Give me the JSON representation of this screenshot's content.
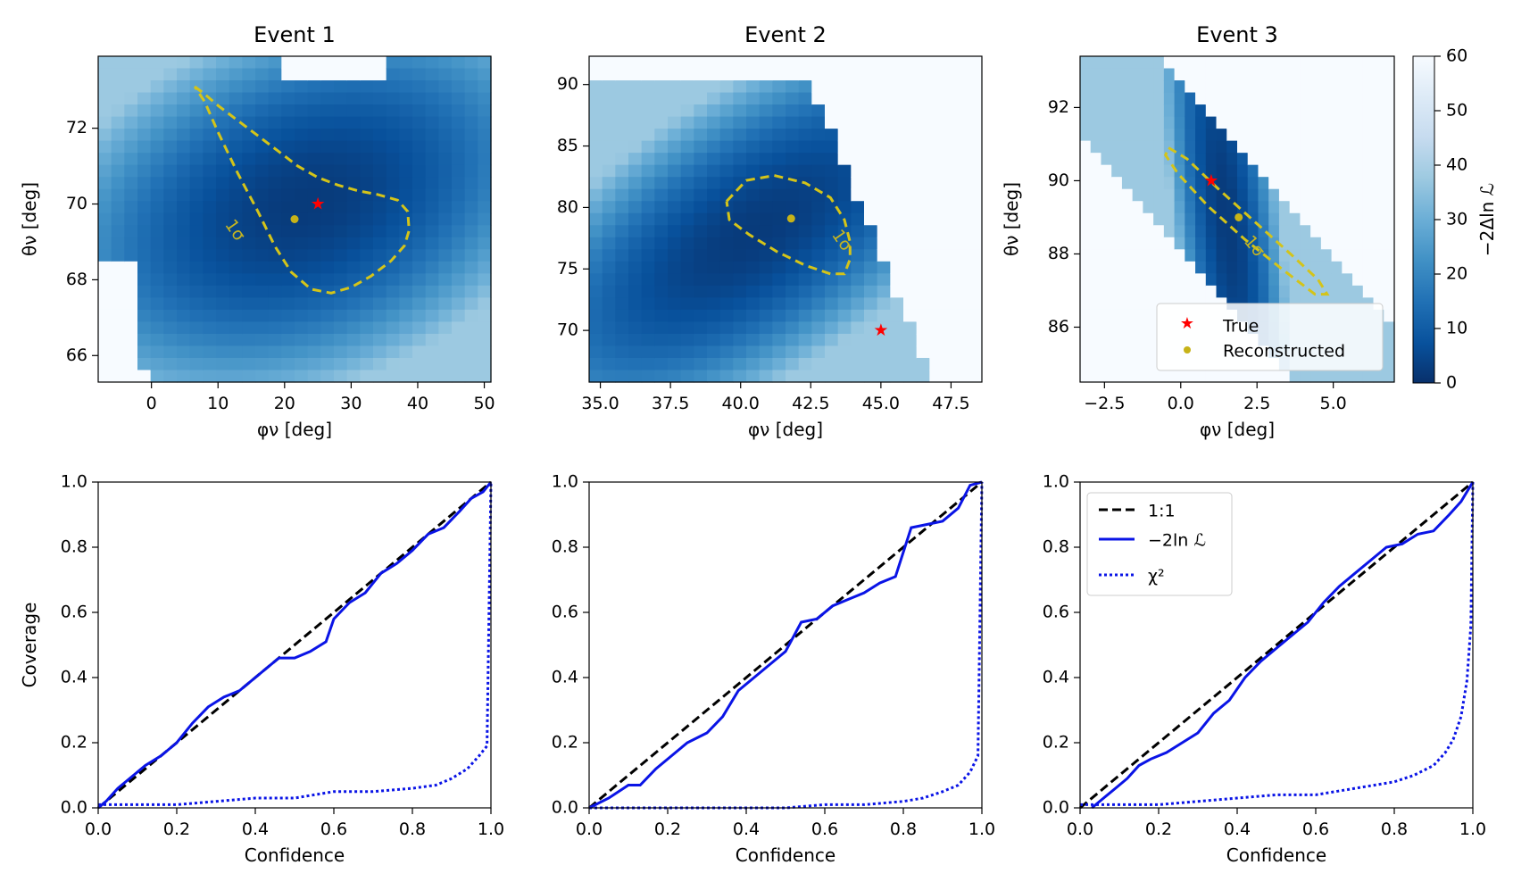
{
  "colors": {
    "true_marker": "#ff0000",
    "reco_marker": "#c7b318",
    "contour": "#d4c419",
    "identity_line": "#000000",
    "likelihood_line": "#0a14e6",
    "chi2_line": "#0a14e6",
    "colormap": [
      "#08306b",
      "#08519c",
      "#2171b5",
      "#4292c6",
      "#6baed6",
      "#9ecae1",
      "#c6dbef",
      "#deebf7",
      "#f7fbff"
    ]
  },
  "chart_data": [
    {
      "type": "heatmap",
      "title": "Event 1",
      "xlabel": "φν [deg]",
      "ylabel": "θν [deg]",
      "xlim": [
        -8,
        51
      ],
      "ylim": [
        65.3,
        73.9
      ],
      "xticks": [
        0,
        10,
        20,
        30,
        40,
        50
      ],
      "xtick_labels": [
        "0",
        "10",
        "20",
        "30",
        "40",
        "50"
      ],
      "yticks": [
        66,
        68,
        70,
        72
      ],
      "ytick_labels": [
        "66",
        "68",
        "70",
        "72"
      ],
      "true_point": [
        25,
        70
      ],
      "reconstructed_point": [
        21.5,
        69.6
      ],
      "contour_label": "1σ",
      "contour": [
        [
          6.5,
          73.1
        ],
        [
          8,
          72.9
        ],
        [
          10,
          72.6
        ],
        [
          13,
          72.2
        ],
        [
          16,
          71.8
        ],
        [
          19,
          71.4
        ],
        [
          22,
          71.0
        ],
        [
          25,
          70.7
        ],
        [
          28,
          70.5
        ],
        [
          31,
          70.35
        ],
        [
          34,
          70.25
        ],
        [
          37,
          70.1
        ],
        [
          38.5,
          69.8
        ],
        [
          38.7,
          69.3
        ],
        [
          38,
          68.9
        ],
        [
          36,
          68.5
        ],
        [
          33,
          68.1
        ],
        [
          30,
          67.8
        ],
        [
          27,
          67.65
        ],
        [
          24,
          67.75
        ],
        [
          21,
          68.2
        ],
        [
          18.5,
          68.9
        ],
        [
          16,
          69.8
        ],
        [
          13,
          70.8
        ],
        [
          10,
          71.9
        ],
        [
          8,
          72.7
        ],
        [
          6.5,
          73.1
        ]
      ]
    },
    {
      "type": "heatmap",
      "title": "Event 2",
      "xlabel": "φν [deg]",
      "ylabel": "",
      "xlim": [
        34.6,
        48.6
      ],
      "ylim": [
        65.8,
        92.3
      ],
      "xticks": [
        35,
        37.5,
        40,
        42.5,
        45,
        47.5
      ],
      "xtick_labels": [
        "35.0",
        "37.5",
        "40.0",
        "42.5",
        "45.0",
        "47.5"
      ],
      "yticks": [
        70,
        75,
        80,
        85,
        90
      ],
      "ytick_labels": [
        "70",
        "75",
        "80",
        "85",
        "90"
      ],
      "true_point": [
        45,
        70
      ],
      "reconstructed_point": [
        41.8,
        79.1
      ],
      "contour_label": "1σ",
      "contour": [
        [
          39.5,
          80.5
        ],
        [
          40.2,
          82.2
        ],
        [
          41.2,
          82.6
        ],
        [
          42.3,
          82.0
        ],
        [
          43.2,
          80.8
        ],
        [
          43.7,
          79.0
        ],
        [
          43.9,
          77.2
        ],
        [
          43.9,
          75.8
        ],
        [
          43.7,
          74.6
        ],
        [
          43.2,
          74.6
        ],
        [
          42.3,
          75.3
        ],
        [
          41.3,
          76.4
        ],
        [
          40.3,
          77.8
        ],
        [
          39.6,
          79.0
        ],
        [
          39.5,
          80.5
        ]
      ]
    },
    {
      "type": "heatmap",
      "title": "Event 3",
      "xlabel": "φν [deg]",
      "ylabel": "θν [deg]",
      "xlim": [
        -3.3,
        7.0
      ],
      "ylim": [
        84.5,
        93.4
      ],
      "xticks": [
        -2.5,
        0,
        2.5,
        5
      ],
      "xtick_labels": [
        "−2.5",
        "0.0",
        "2.5",
        "5.0"
      ],
      "yticks": [
        86,
        88,
        90,
        92
      ],
      "ytick_labels": [
        "86",
        "88",
        "90",
        "92"
      ],
      "true_point": [
        1,
        90
      ],
      "reconstructed_point": [
        1.9,
        89
      ],
      "contour_label": "1σ",
      "contour": [
        [
          -0.4,
          90.9
        ],
        [
          0.2,
          90.6
        ],
        [
          1.2,
          89.8
        ],
        [
          2.4,
          88.9
        ],
        [
          3.6,
          88.0
        ],
        [
          4.5,
          87.3
        ],
        [
          4.8,
          86.9
        ],
        [
          4.4,
          86.9
        ],
        [
          3.3,
          87.6
        ],
        [
          2.1,
          88.4
        ],
        [
          0.9,
          89.3
        ],
        [
          -0.1,
          90.2
        ],
        [
          -0.5,
          90.7
        ],
        [
          -0.4,
          90.9
        ]
      ]
    },
    {
      "type": "line",
      "xlabel": "Confidence",
      "ylabel": "Coverage",
      "xlim": [
        0,
        1
      ],
      "ylim": [
        0,
        1
      ],
      "ticks": [
        0,
        0.2,
        0.4,
        0.6,
        0.8,
        1.0
      ],
      "tick_labels": [
        "0.0",
        "0.2",
        "0.4",
        "0.6",
        "0.8",
        "1.0"
      ],
      "series": [
        {
          "x": [
            0,
            1
          ],
          "y": [
            0,
            1
          ],
          "style": "dashed"
        },
        {
          "x": [
            0,
            0.02,
            0.05,
            0.08,
            0.12,
            0.16,
            0.2,
            0.24,
            0.28,
            0.32,
            0.36,
            0.4,
            0.46,
            0.5,
            0.54,
            0.58,
            0.6,
            0.64,
            0.68,
            0.72,
            0.76,
            0.8,
            0.84,
            0.88,
            0.92,
            0.95,
            0.98,
            1.0
          ],
          "y": [
            0,
            0.02,
            0.06,
            0.09,
            0.13,
            0.16,
            0.2,
            0.26,
            0.31,
            0.34,
            0.36,
            0.4,
            0.46,
            0.46,
            0.48,
            0.51,
            0.58,
            0.63,
            0.66,
            0.72,
            0.75,
            0.79,
            0.84,
            0.86,
            0.91,
            0.95,
            0.97,
            1.0
          ],
          "style": "solid"
        },
        {
          "x": [
            0,
            0.1,
            0.2,
            0.3,
            0.4,
            0.5,
            0.55,
            0.6,
            0.7,
            0.8,
            0.86,
            0.9,
            0.94,
            0.97,
            0.99,
            1.0
          ],
          "y": [
            0.01,
            0.01,
            0.01,
            0.02,
            0.03,
            0.03,
            0.04,
            0.05,
            0.05,
            0.06,
            0.07,
            0.09,
            0.12,
            0.16,
            0.19,
            1.0
          ],
          "style": "dotted"
        }
      ]
    },
    {
      "type": "line",
      "xlabel": "Confidence",
      "ylabel": "",
      "xlim": [
        0,
        1
      ],
      "ylim": [
        0,
        1
      ],
      "ticks": [
        0,
        0.2,
        0.4,
        0.6,
        0.8,
        1.0
      ],
      "tick_labels": [
        "0.0",
        "0.2",
        "0.4",
        "0.6",
        "0.8",
        "1.0"
      ],
      "series": [
        {
          "x": [
            0,
            1
          ],
          "y": [
            0,
            1
          ],
          "style": "dashed"
        },
        {
          "x": [
            0,
            0.05,
            0.1,
            0.13,
            0.17,
            0.21,
            0.25,
            0.3,
            0.34,
            0.38,
            0.42,
            0.46,
            0.5,
            0.54,
            0.58,
            0.62,
            0.66,
            0.7,
            0.74,
            0.78,
            0.82,
            0.86,
            0.9,
            0.94,
            0.97,
            1.0
          ],
          "y": [
            0,
            0.03,
            0.07,
            0.07,
            0.12,
            0.16,
            0.2,
            0.23,
            0.28,
            0.36,
            0.4,
            0.44,
            0.48,
            0.57,
            0.58,
            0.62,
            0.64,
            0.66,
            0.69,
            0.71,
            0.86,
            0.87,
            0.88,
            0.92,
            0.99,
            1.0
          ],
          "style": "solid"
        },
        {
          "x": [
            0,
            0.2,
            0.4,
            0.5,
            0.6,
            0.7,
            0.8,
            0.85,
            0.9,
            0.94,
            0.97,
            0.99,
            1.0
          ],
          "y": [
            0,
            0,
            0,
            0,
            0.01,
            0.01,
            0.02,
            0.03,
            0.05,
            0.07,
            0.11,
            0.16,
            1.0
          ],
          "style": "dotted"
        }
      ]
    },
    {
      "type": "line",
      "xlabel": "Confidence",
      "ylabel": "",
      "xlim": [
        0,
        1
      ],
      "ylim": [
        0,
        1
      ],
      "ticks": [
        0,
        0.2,
        0.4,
        0.6,
        0.8,
        1.0
      ],
      "tick_labels": [
        "0.0",
        "0.2",
        "0.4",
        "0.6",
        "0.8",
        "1.0"
      ],
      "legend": {
        "placement": "upper left",
        "entries": [
          "1:1",
          "−2ln ℒ",
          "χ²"
        ]
      },
      "series": [
        {
          "x": [
            0,
            1
          ],
          "y": [
            0,
            1
          ],
          "style": "dashed"
        },
        {
          "x": [
            0.03,
            0.06,
            0.09,
            0.12,
            0.15,
            0.18,
            0.22,
            0.26,
            0.3,
            0.34,
            0.38,
            0.42,
            0.46,
            0.5,
            0.54,
            0.58,
            0.62,
            0.66,
            0.7,
            0.74,
            0.78,
            0.82,
            0.86,
            0.9,
            0.94,
            0.97,
            1.0
          ],
          "y": [
            0,
            0.03,
            0.06,
            0.09,
            0.13,
            0.15,
            0.17,
            0.2,
            0.23,
            0.29,
            0.33,
            0.4,
            0.45,
            0.49,
            0.53,
            0.57,
            0.63,
            0.68,
            0.72,
            0.76,
            0.8,
            0.81,
            0.84,
            0.85,
            0.9,
            0.94,
            1.0
          ],
          "style": "solid"
        },
        {
          "x": [
            0,
            0.2,
            0.3,
            0.4,
            0.5,
            0.6,
            0.7,
            0.75,
            0.8,
            0.85,
            0.9,
            0.93,
            0.95,
            0.97,
            0.985,
            0.995,
            1.0
          ],
          "y": [
            0.01,
            0.01,
            0.02,
            0.03,
            0.04,
            0.04,
            0.06,
            0.07,
            0.08,
            0.1,
            0.13,
            0.17,
            0.21,
            0.28,
            0.39,
            0.56,
            1.0
          ],
          "style": "dotted"
        }
      ]
    },
    {
      "type": "colorbar",
      "label": "−2Δln ℒ",
      "range": [
        0,
        60
      ],
      "ticks": [
        0,
        10,
        20,
        30,
        40,
        50,
        60
      ],
      "tick_labels": [
        "0",
        "10",
        "20",
        "30",
        "40",
        "50",
        "60"
      ]
    }
  ],
  "legend_top": {
    "entries": [
      "True",
      "Reconstructed"
    ]
  }
}
